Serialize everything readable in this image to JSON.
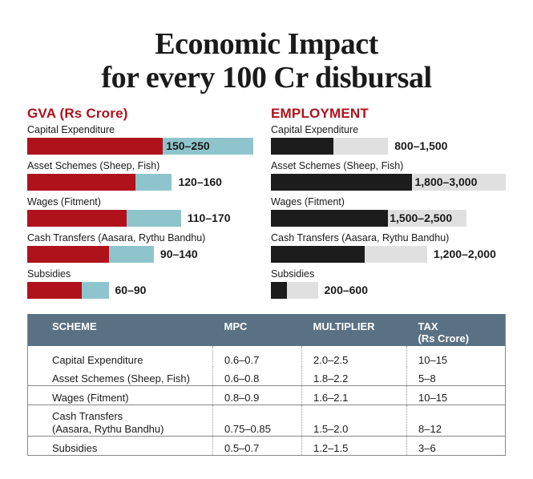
{
  "title_line1": "Economic Impact",
  "title_line2": "for every 100 Cr disbursal",
  "chart_data": [
    {
      "type": "bar",
      "title": "GVA (Rs Crore)",
      "categories": [
        "Capital Expenditure",
        "Asset Schemes (Sheep, Fish)",
        "Wages (Fitment)",
        "Cash Transfers (Aasara, Rythu Bandhu)",
        "Subsidies"
      ],
      "series": [
        {
          "name": "low",
          "values": [
            150,
            120,
            110,
            90,
            60
          ],
          "color": "#b0121b"
        },
        {
          "name": "high",
          "values": [
            250,
            160,
            170,
            140,
            90
          ],
          "color": "#8ec5cc"
        }
      ],
      "labels": [
        "150–250",
        "120–160",
        "110–170",
        "90–140",
        "60–90"
      ],
      "xlabel": "",
      "ylabel": ""
    },
    {
      "type": "bar",
      "title": "EMPLOYMENT",
      "categories": [
        "Capital Expenditure",
        "Asset Schemes (Sheep, Fish)",
        "Wages (Fitment)",
        "Cash Transfers (Aasara, Rythu Bandhu)",
        "Subsidies"
      ],
      "series": [
        {
          "name": "low",
          "values": [
            800,
            1800,
            1500,
            1200,
            200
          ],
          "color": "#1c1c1c"
        },
        {
          "name": "high",
          "values": [
            1500,
            3000,
            2500,
            2000,
            600
          ],
          "color": "#e0e0e0"
        }
      ],
      "labels": [
        "800–1,500",
        "1,800–3,000",
        "1,500–2,500",
        "1,200–2,000",
        "200–600"
      ],
      "xlabel": "",
      "ylabel": ""
    }
  ],
  "table": {
    "headers": [
      "SCHEME",
      "MPC",
      "MULTIPLIER",
      "TAX",
      "(Rs Crore)"
    ],
    "rows": [
      {
        "scheme": "Capital Expenditure",
        "scheme2": "",
        "mpc": "0.6–0.7",
        "multiplier": "2.0–2.5",
        "tax": "10–15"
      },
      {
        "scheme": "Asset Schemes (Sheep, Fish)",
        "scheme2": "",
        "mpc": "0.6–0.8",
        "multiplier": "1.8–2.2",
        "tax": "5–8"
      },
      {
        "scheme": "Wages (Fitment)",
        "scheme2": "",
        "mpc": "0.8–0.9",
        "multiplier": "1.6–2.1",
        "tax": "10–15"
      },
      {
        "scheme": "Cash Transfers",
        "scheme2": "(Aasara, Rythu Bandhu)",
        "mpc": "0.75–0.85",
        "multiplier": "1.5–2.0",
        "tax": "8–12"
      },
      {
        "scheme": "Subsidies",
        "scheme2": "",
        "mpc": "0.5–0.7",
        "multiplier": "1.2–1.5",
        "tax": "3–6"
      }
    ]
  }
}
